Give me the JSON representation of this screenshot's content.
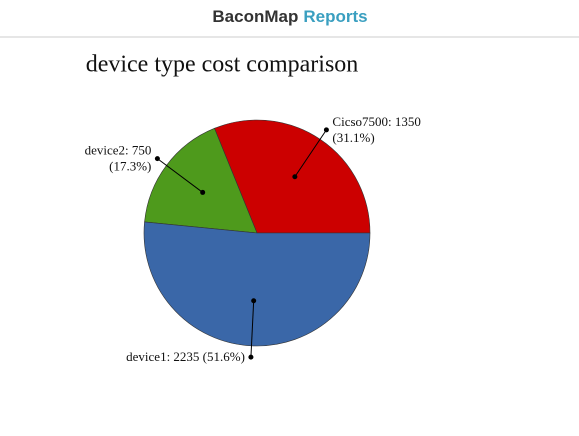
{
  "header": {
    "brand": "BaconMap",
    "section": "Reports"
  },
  "chart_data": {
    "type": "pie",
    "title": "device type cost comparison",
    "values": [
      1350,
      750,
      2235
    ],
    "value_labels": [
      [
        "Cicso7500: 1350",
        "(31.1%)"
      ],
      [
        "device2: 750",
        "(17.3%)"
      ],
      [
        "device1: 2235 (51.6%)"
      ]
    ],
    "colors": [
      "#cc0000",
      "#4e9a1c",
      "#3a67a8"
    ]
  }
}
